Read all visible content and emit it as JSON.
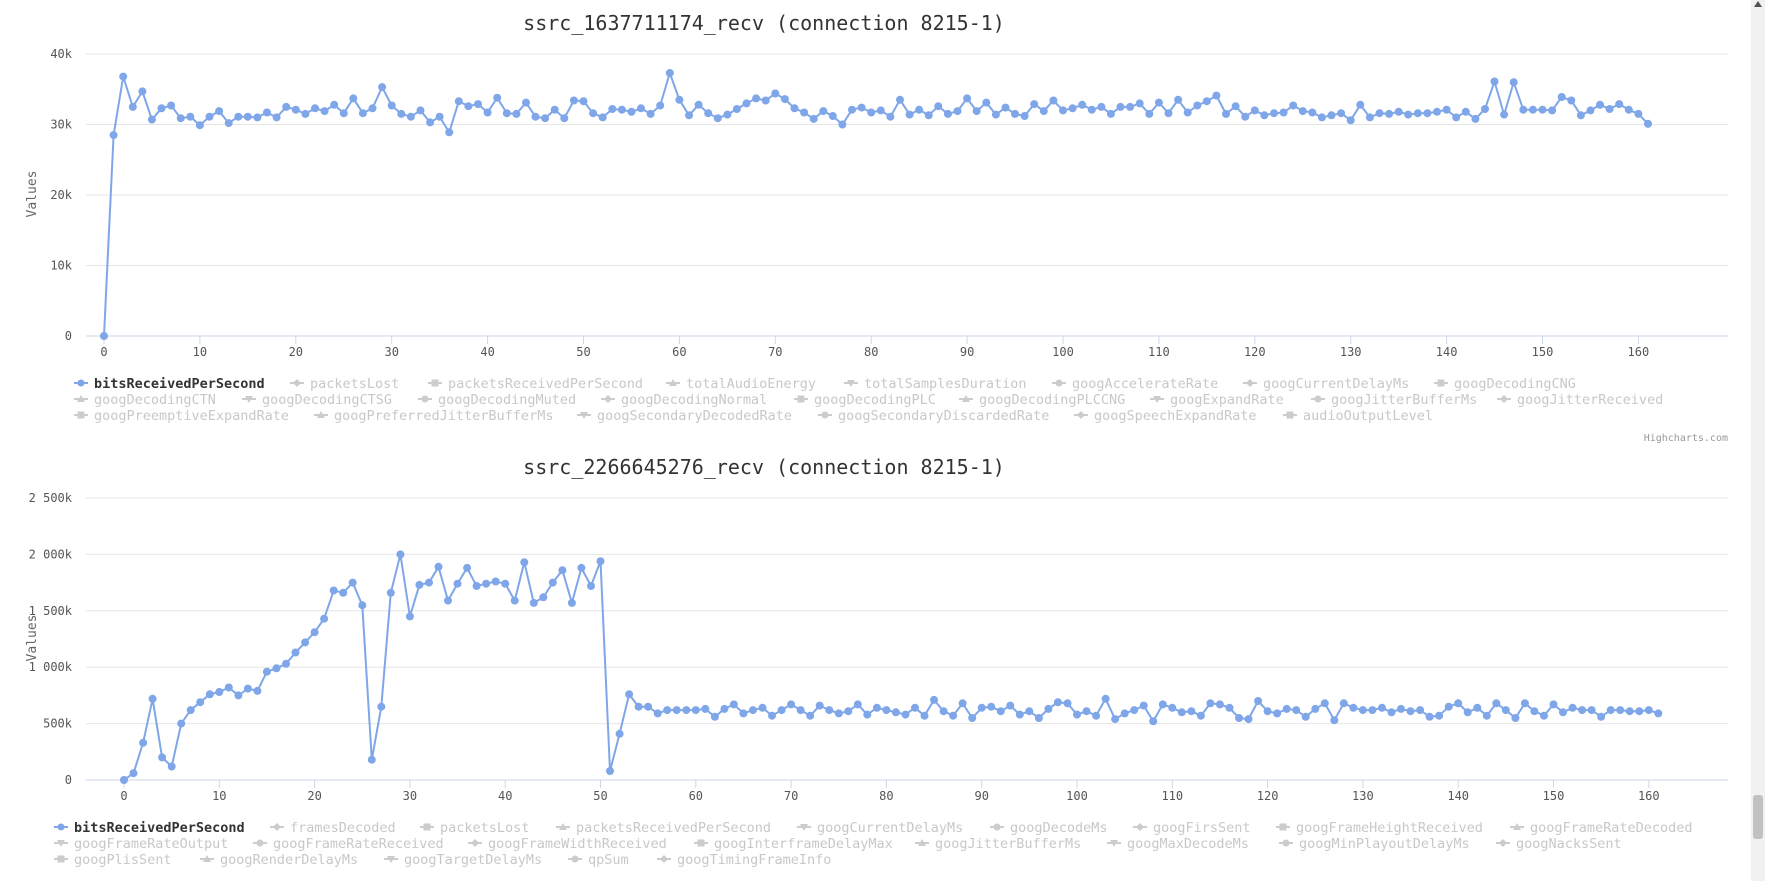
{
  "colors": {
    "active_series": "#7fa6e8",
    "inactive_series": "#cccccc",
    "grid": "#e6e6e6",
    "axis": "#ccd6eb"
  },
  "charts": [
    {
      "title": "ssrc_1637711174_recv (connection 8215-1)",
      "ylabel": "Values",
      "credit": "Highcharts.com",
      "x_ticks": [
        "0",
        "10",
        "20",
        "30",
        "40",
        "50",
        "60",
        "70",
        "80",
        "90",
        "100",
        "110",
        "120",
        "130",
        "140",
        "150",
        "160"
      ],
      "y_ticks": [
        "0",
        "10k",
        "20k",
        "30k",
        "40k"
      ],
      "legend": [
        [
          "bitsReceivedPerSecond",
          "packetsLost",
          "packetsReceivedPerSecond",
          "totalAudioEnergy",
          "totalSamplesDuration",
          "googAccelerateRate",
          "googCurrentDelayMs",
          "googDecodingCNG"
        ],
        [
          "googDecodingCTN",
          "googDecodingCTSG",
          "googDecodingMuted",
          "googDecodingNormal",
          "googDecodingPLC",
          "googDecodingPLCCNG",
          "googExpandRate",
          "googJitterBufferMs",
          "googJitterReceived"
        ],
        [
          "googPreemptiveExpandRate",
          "googPreferredJitterBufferMs",
          "googSecondaryDecodedRate",
          "googSecondaryDiscardedRate",
          "googSpeechExpandRate",
          "audioOutputLevel"
        ]
      ]
    },
    {
      "title": "ssrc_2266645276_recv (connection 8215-1)",
      "ylabel": "Values",
      "credit": "Highcharts.com",
      "x_ticks": [
        "0",
        "10",
        "20",
        "30",
        "40",
        "50",
        "60",
        "70",
        "80",
        "90",
        "100",
        "110",
        "120",
        "130",
        "140",
        "150",
        "160"
      ],
      "y_ticks": [
        "0",
        "500k",
        "1 000k",
        "1 500k",
        "2 000k",
        "2 500k"
      ],
      "legend": [
        [
          "bitsReceivedPerSecond",
          "framesDecoded",
          "packetsLost",
          "packetsReceivedPerSecond",
          "googCurrentDelayMs",
          "googDecodeMs",
          "googFirsSent",
          "googFrameHeightReceived",
          "googFrameRateDecoded"
        ],
        [
          "googFrameRateOutput",
          "googFrameRateReceived",
          "googFrameWidthReceived",
          "googInterframeDelayMax",
          "googJitterBufferMs",
          "googMaxDecodeMs",
          "googMinPlayoutDelayMs",
          "googNacksSent"
        ],
        [
          "googPlisSent",
          "googRenderDelayMs",
          "googTargetDelayMs",
          "qpSum",
          "googTimingFrameInfo"
        ]
      ]
    }
  ],
  "chart_data": [
    {
      "type": "line",
      "title": "ssrc_1637711174_recv (connection 8215-1)",
      "xlabel": "",
      "ylabel": "Values",
      "xlim": [
        0,
        161
      ],
      "ylim": [
        0,
        40000
      ],
      "grid": true,
      "legend_position": "bottom",
      "series": [
        {
          "name": "bitsReceivedPerSecond",
          "x_start": 0,
          "values": [
            0,
            28500,
            36800,
            32500,
            34700,
            30700,
            32300,
            32700,
            30900,
            31100,
            29900,
            31100,
            31900,
            30200,
            31100,
            31100,
            31000,
            31700,
            31000,
            32500,
            32100,
            31500,
            32300,
            31900,
            32800,
            31600,
            33700,
            31600,
            32300,
            35300,
            32700,
            31500,
            31100,
            32000,
            30300,
            31100,
            28900,
            33300,
            32600,
            32900,
            31700,
            33800,
            31600,
            31500,
            33100,
            31100,
            30900,
            32100,
            30900,
            33400,
            33300,
            31600,
            31000,
            32200,
            32100,
            31800,
            32300,
            31500,
            32700,
            37300,
            33500,
            31300,
            32800,
            31600,
            30900,
            31400,
            32200,
            33000,
            33700,
            33400,
            34400,
            33600,
            32300,
            31700,
            30800,
            31900,
            31200,
            30000,
            32100,
            32400,
            31700,
            32000,
            31100,
            33500,
            31400,
            32100,
            31300,
            32600,
            31500,
            31900,
            33700,
            31900,
            33100,
            31400,
            32400,
            31500,
            31200,
            32900,
            31900,
            33400,
            32000,
            32300,
            32800,
            32100,
            32500,
            31500,
            32500,
            32500,
            33000,
            31500,
            33100,
            31600,
            33500,
            31700,
            32700,
            33300,
            34100,
            31500,
            32600,
            31100,
            32000,
            31300,
            31600,
            31700,
            32700,
            31900,
            31700,
            31000,
            31300,
            31600,
            30600,
            32800,
            31000,
            31600,
            31500,
            31800,
            31400,
            31600,
            31600,
            31800,
            32100,
            31000,
            31800,
            30800,
            32200,
            36100,
            31400,
            36000,
            32100,
            32100,
            32100,
            32000,
            33900,
            33400,
            31300,
            32000,
            32800,
            32200,
            32900,
            32100,
            31500,
            30100
          ]
        }
      ]
    },
    {
      "type": "line",
      "title": "ssrc_2266645276_recv (connection 8215-1)",
      "xlabel": "",
      "ylabel": "Values",
      "xlim": [
        0,
        161
      ],
      "ylim": [
        0,
        2500000
      ],
      "grid": true,
      "legend_position": "bottom",
      "series": [
        {
          "name": "bitsReceivedPerSecond",
          "x_start": 0,
          "values": [
            0,
            60000,
            330000,
            720000,
            200000,
            120000,
            500000,
            620000,
            690000,
            760000,
            780000,
            820000,
            750000,
            810000,
            790000,
            960000,
            990000,
            1030000,
            1130000,
            1220000,
            1310000,
            1430000,
            1680000,
            1660000,
            1750000,
            1550000,
            180000,
            650000,
            1660000,
            2000000,
            1450000,
            1730000,
            1750000,
            1890000,
            1590000,
            1740000,
            1880000,
            1720000,
            1740000,
            1760000,
            1740000,
            1590000,
            1930000,
            1570000,
            1620000,
            1750000,
            1860000,
            1570000,
            1880000,
            1720000,
            1940000,
            80000,
            410000,
            760000,
            650000,
            650000,
            590000,
            620000,
            620000,
            620000,
            620000,
            630000,
            560000,
            630000,
            670000,
            590000,
            620000,
            640000,
            570000,
            620000,
            670000,
            620000,
            570000,
            660000,
            620000,
            590000,
            610000,
            670000,
            580000,
            640000,
            620000,
            600000,
            580000,
            640000,
            570000,
            710000,
            610000,
            570000,
            680000,
            550000,
            640000,
            650000,
            610000,
            660000,
            580000,
            610000,
            550000,
            630000,
            690000,
            680000,
            580000,
            610000,
            570000,
            720000,
            540000,
            590000,
            620000,
            660000,
            520000,
            670000,
            640000,
            600000,
            610000,
            570000,
            680000,
            670000,
            640000,
            550000,
            540000,
            700000,
            610000,
            590000,
            630000,
            620000,
            560000,
            630000,
            680000,
            530000,
            680000,
            640000,
            620000,
            620000,
            640000,
            600000,
            630000,
            610000,
            620000,
            560000,
            570000,
            650000,
            680000,
            600000,
            640000,
            570000,
            680000,
            620000,
            550000,
            680000,
            610000,
            570000,
            670000,
            600000,
            640000,
            620000,
            620000,
            560000,
            620000,
            620000,
            610000,
            610000,
            620000,
            590000
          ]
        }
      ]
    }
  ]
}
